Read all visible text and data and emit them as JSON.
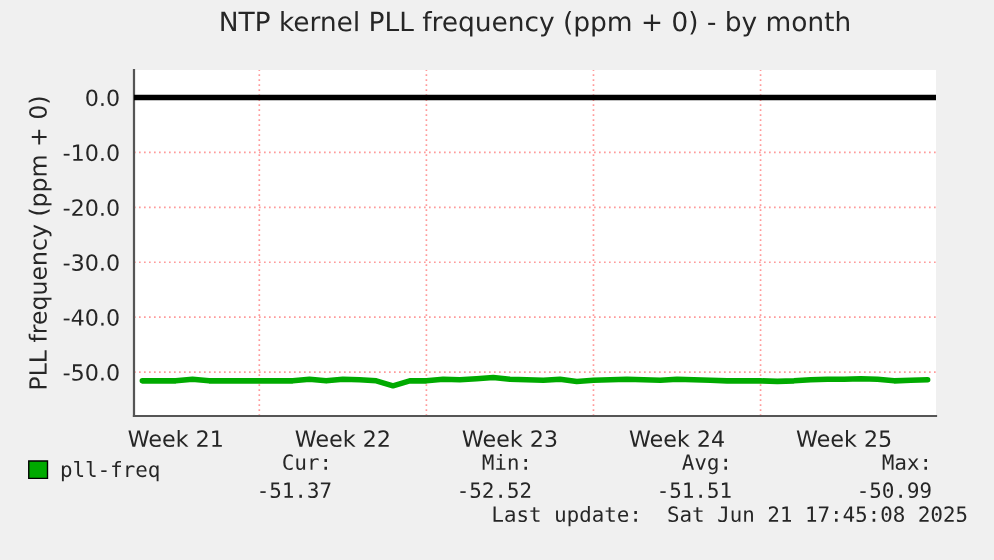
{
  "chart_data": {
    "type": "line",
    "title": "NTP kernel PLL frequency (ppm + 0) - by month",
    "ylabel": "PLL frequency (ppm + 0)",
    "categories": [
      null,
      null,
      "Week 21",
      null,
      null,
      null,
      null,
      null,
      null,
      null,
      null,
      null,
      "Week 22",
      null,
      null,
      null,
      null,
      null,
      null,
      null,
      null,
      null,
      "Week 23",
      null,
      null,
      null,
      null,
      null,
      null,
      null,
      null,
      null,
      "Week 24",
      null,
      null,
      null,
      null,
      null,
      null,
      null,
      null,
      null,
      "Week 25",
      null,
      null,
      null,
      null,
      null
    ],
    "series": [
      {
        "name": "pll-freq",
        "color": "#00aa00",
        "values": [
          -51.6,
          -51.6,
          -51.6,
          -51.3,
          -51.6,
          -51.6,
          -51.6,
          -51.6,
          -51.6,
          -51.6,
          -51.3,
          -51.6,
          -51.3,
          -51.4,
          -51.6,
          -52.5,
          -51.6,
          -51.6,
          -51.3,
          -51.4,
          -51.2,
          -51.0,
          -51.3,
          -51.4,
          -51.5,
          -51.3,
          -51.7,
          -51.5,
          -51.4,
          -51.3,
          -51.4,
          -51.5,
          -51.3,
          -51.4,
          -51.5,
          -51.6,
          -51.6,
          -51.6,
          -51.7,
          -51.6,
          -51.4,
          -51.3,
          -51.3,
          -51.2,
          -51.3,
          -51.6,
          -51.5,
          -51.4
        ]
      }
    ],
    "ylim": [
      -58,
      5
    ],
    "yticks": [
      {
        "value": 0,
        "label": "0.0"
      },
      {
        "value": -10,
        "label": "-10.0"
      },
      {
        "value": -20,
        "label": "-20.0"
      },
      {
        "value": -30,
        "label": "-30.0"
      },
      {
        "value": -40,
        "label": "-40.0"
      },
      {
        "value": -50,
        "label": "-50.0"
      }
    ],
    "ref_lines": [
      {
        "axis": "y",
        "value": 0,
        "label": null,
        "color": "#000000"
      }
    ],
    "grid": true,
    "legend": "bottom left",
    "annotations": [
      "Cur:",
      "Min:",
      "Avg:",
      "Max:",
      "-51.37",
      "-52.52",
      "-51.51",
      "-50.99",
      "Last update:  Sat Jun 21 17:45:08 2025"
    ]
  }
}
